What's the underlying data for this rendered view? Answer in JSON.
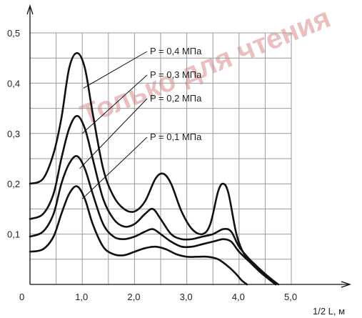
{
  "chart_data": {
    "type": "line",
    "xlabel": "1/2 L, м",
    "ylabel": "",
    "xlim": [
      0,
      5.0
    ],
    "ylim": [
      0,
      0.5
    ],
    "x_ticks": [
      {
        "value": 0,
        "label": "0"
      },
      {
        "value": 1.0,
        "label": "1,0"
      },
      {
        "value": 2.0,
        "label": "2,0"
      },
      {
        "value": 3.0,
        "label": "3,0"
      },
      {
        "value": 4.0,
        "label": "4,0"
      },
      {
        "value": 5.0,
        "label": "5,0"
      }
    ],
    "y_ticks": [
      {
        "value": 0.1,
        "label": "0,1"
      },
      {
        "value": 0.2,
        "label": "0,2"
      },
      {
        "value": 0.3,
        "label": "0,3"
      },
      {
        "value": 0.4,
        "label": "0,4"
      },
      {
        "value": 0.5,
        "label": "0,5"
      }
    ],
    "grid": true,
    "watermark": "Только для чтения",
    "series": [
      {
        "name": "P = 0,4 МПа",
        "points": [
          [
            0,
            0.2
          ],
          [
            0.25,
            0.21
          ],
          [
            0.45,
            0.26
          ],
          [
            0.6,
            0.33
          ],
          [
            0.75,
            0.43
          ],
          [
            0.9,
            0.46
          ],
          [
            1.05,
            0.43
          ],
          [
            1.2,
            0.34
          ],
          [
            1.4,
            0.23
          ],
          [
            1.6,
            0.175
          ],
          [
            1.8,
            0.15
          ],
          [
            2.0,
            0.145
          ],
          [
            2.2,
            0.165
          ],
          [
            2.4,
            0.21
          ],
          [
            2.55,
            0.22
          ],
          [
            2.7,
            0.2
          ],
          [
            2.9,
            0.145
          ],
          [
            3.1,
            0.11
          ],
          [
            3.3,
            0.1
          ],
          [
            3.45,
            0.12
          ],
          [
            3.6,
            0.185
          ],
          [
            3.7,
            0.2
          ],
          [
            3.8,
            0.18
          ],
          [
            3.95,
            0.1
          ],
          [
            4.1,
            0.06
          ],
          [
            4.3,
            0.04
          ],
          [
            4.5,
            0.018
          ],
          [
            4.7,
            0.0
          ]
        ]
      },
      {
        "name": "P = 0,3 МПа",
        "points": [
          [
            0,
            0.13
          ],
          [
            0.25,
            0.14
          ],
          [
            0.45,
            0.18
          ],
          [
            0.6,
            0.25
          ],
          [
            0.75,
            0.31
          ],
          [
            0.9,
            0.335
          ],
          [
            1.05,
            0.31
          ],
          [
            1.2,
            0.25
          ],
          [
            1.4,
            0.17
          ],
          [
            1.6,
            0.13
          ],
          [
            1.8,
            0.115
          ],
          [
            2.0,
            0.12
          ],
          [
            2.2,
            0.14
          ],
          [
            2.35,
            0.15
          ],
          [
            2.5,
            0.13
          ],
          [
            2.7,
            0.1
          ],
          [
            2.9,
            0.09
          ],
          [
            3.1,
            0.09
          ],
          [
            3.3,
            0.095
          ],
          [
            3.5,
            0.1
          ],
          [
            3.7,
            0.11
          ],
          [
            3.85,
            0.105
          ],
          [
            4.0,
            0.075
          ],
          [
            4.2,
            0.05
          ],
          [
            4.4,
            0.03
          ],
          [
            4.6,
            0.012
          ],
          [
            4.75,
            0.0
          ]
        ]
      },
      {
        "name": "P = 0,2 МПа",
        "points": [
          [
            0,
            0.095
          ],
          [
            0.25,
            0.105
          ],
          [
            0.45,
            0.14
          ],
          [
            0.6,
            0.2
          ],
          [
            0.75,
            0.24
          ],
          [
            0.9,
            0.255
          ],
          [
            1.05,
            0.23
          ],
          [
            1.2,
            0.18
          ],
          [
            1.4,
            0.12
          ],
          [
            1.6,
            0.095
          ],
          [
            1.8,
            0.09
          ],
          [
            2.0,
            0.095
          ],
          [
            2.2,
            0.105
          ],
          [
            2.35,
            0.11
          ],
          [
            2.5,
            0.1
          ],
          [
            2.7,
            0.085
          ],
          [
            2.9,
            0.075
          ],
          [
            3.1,
            0.075
          ],
          [
            3.3,
            0.08
          ],
          [
            3.5,
            0.085
          ],
          [
            3.7,
            0.09
          ],
          [
            3.85,
            0.085
          ],
          [
            4.0,
            0.065
          ],
          [
            4.2,
            0.045
          ],
          [
            4.4,
            0.025
          ],
          [
            4.6,
            0.008
          ],
          [
            4.7,
            0.0
          ]
        ]
      },
      {
        "name": "P = 0,1 МПа",
        "points": [
          [
            0,
            0.065
          ],
          [
            0.25,
            0.07
          ],
          [
            0.45,
            0.095
          ],
          [
            0.6,
            0.14
          ],
          [
            0.75,
            0.18
          ],
          [
            0.9,
            0.195
          ],
          [
            1.05,
            0.17
          ],
          [
            1.2,
            0.12
          ],
          [
            1.4,
            0.075
          ],
          [
            1.6,
            0.06
          ],
          [
            1.8,
            0.058
          ],
          [
            2.0,
            0.065
          ],
          [
            2.2,
            0.072
          ],
          [
            2.4,
            0.075
          ],
          [
            2.6,
            0.07
          ],
          [
            2.8,
            0.06
          ],
          [
            3.0,
            0.055
          ],
          [
            3.2,
            0.055
          ],
          [
            3.4,
            0.055
          ],
          [
            3.6,
            0.05
          ],
          [
            3.8,
            0.035
          ],
          [
            3.95,
            0.02
          ],
          [
            4.05,
            0.008
          ],
          [
            4.15,
            0.0
          ]
        ]
      }
    ],
    "annotations": [
      {
        "text": "P = 0,4 МПа",
        "anchor": [
          1.02,
          0.39
        ]
      },
      {
        "text": "P = 0,3 МПа",
        "anchor": [
          1.0,
          0.3
        ]
      },
      {
        "text": "P = 0,2 МПа",
        "anchor": [
          0.95,
          0.23
        ]
      },
      {
        "text": "P = 0,1 МПа",
        "anchor": [
          1.0,
          0.17
        ]
      }
    ]
  }
}
